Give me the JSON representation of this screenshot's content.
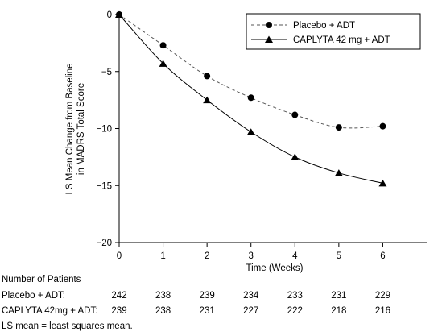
{
  "chart_data": {
    "type": "line",
    "x": [
      0,
      1,
      2,
      3,
      4,
      5,
      6
    ],
    "series": [
      {
        "name": "Placebo + ADT",
        "values": [
          0,
          -2.7,
          -5.4,
          -7.3,
          -8.8,
          -9.9,
          -9.8
        ],
        "marker": "circle",
        "dash": "dashed"
      },
      {
        "name": "CAPLYTA 42 mg + ADT",
        "values": [
          0,
          -4.3,
          -7.5,
          -10.3,
          -12.5,
          -13.9,
          -14.8
        ],
        "marker": "triangle",
        "dash": "solid"
      }
    ],
    "xlabel": "Time (Weeks)",
    "ylabel_line1": "LS Mean Change from Baseline",
    "ylabel_line2": "in MADRS Total Score",
    "xlim": [
      0,
      7
    ],
    "ylim": [
      -20,
      0
    ],
    "xticks": [
      "0",
      "1",
      "2",
      "3",
      "4",
      "5",
      "6"
    ],
    "yticks": [
      "0",
      "−5",
      "−10",
      "−15",
      "−20"
    ],
    "grid": false,
    "legend_position": "top-right"
  },
  "table": {
    "title": "Number of Patients",
    "rows": [
      {
        "label": "Placebo + ADT:",
        "counts": [
          "242",
          "238",
          "239",
          "234",
          "233",
          "231",
          "229"
        ]
      },
      {
        "label": "CAPLYTA 42mg + ADT:",
        "counts": [
          "239",
          "238",
          "231",
          "227",
          "222",
          "218",
          "216"
        ]
      }
    ]
  },
  "footnote": "LS mean = least squares mean."
}
